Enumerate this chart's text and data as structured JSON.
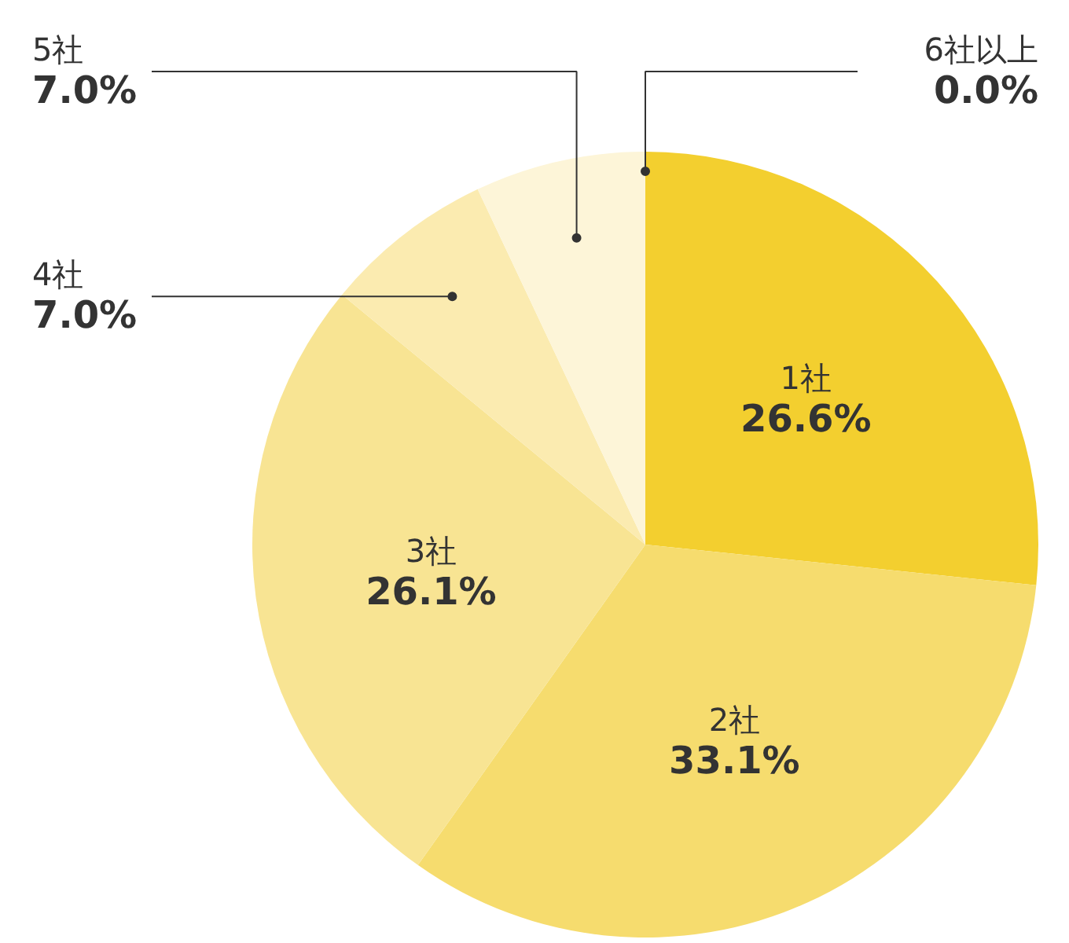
{
  "chart_data": {
    "type": "pie",
    "categories": [
      "1社",
      "2社",
      "3社",
      "4社",
      "5社",
      "6社以上"
    ],
    "values": [
      26.6,
      33.1,
      26.1,
      7.0,
      7.0,
      0.0
    ],
    "value_labels": [
      "26.6%",
      "33.1%",
      "26.1%",
      "7.0%",
      "7.0%",
      "0.0%"
    ],
    "colors": [
      "#f3cf2f",
      "#f6dc6e",
      "#f8e493",
      "#fbebb0",
      "#fdf5d8",
      "#fdf8e6"
    ]
  }
}
